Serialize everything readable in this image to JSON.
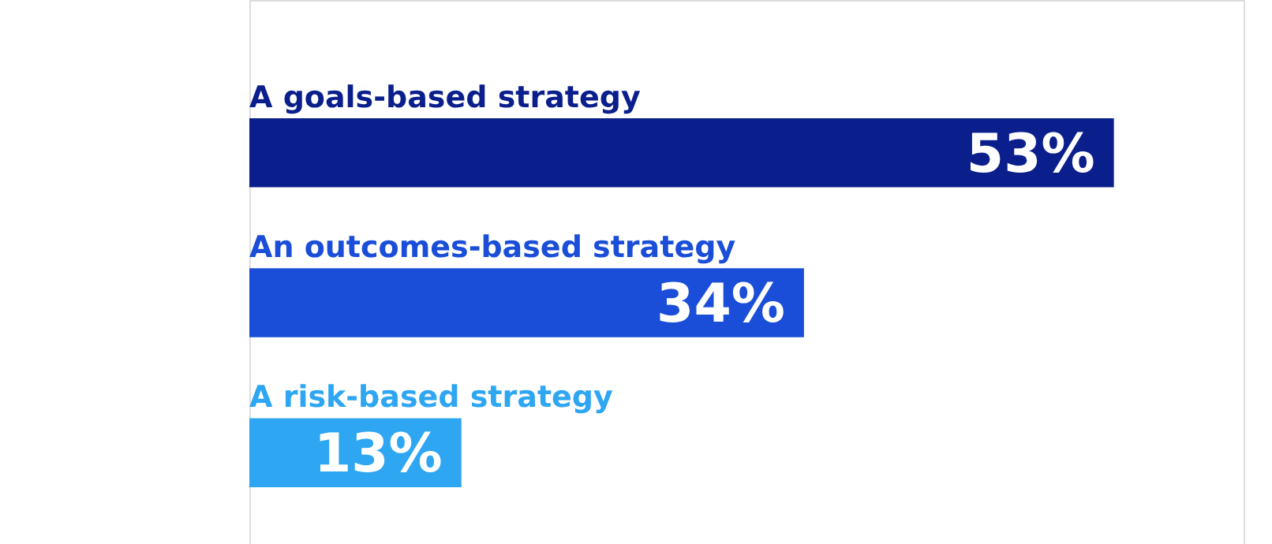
{
  "chart_data": {
    "type": "bar",
    "orientation": "horizontal",
    "categories": [
      "A goals-based strategy",
      "An outcomes-based strategy",
      "A risk-based strategy"
    ],
    "values": [
      53,
      34,
      13
    ],
    "colors": [
      "#0b1f8c",
      "#1a4ed8",
      "#2ea6f2"
    ],
    "value_labels": [
      "53%",
      "34%",
      "13%"
    ]
  }
}
